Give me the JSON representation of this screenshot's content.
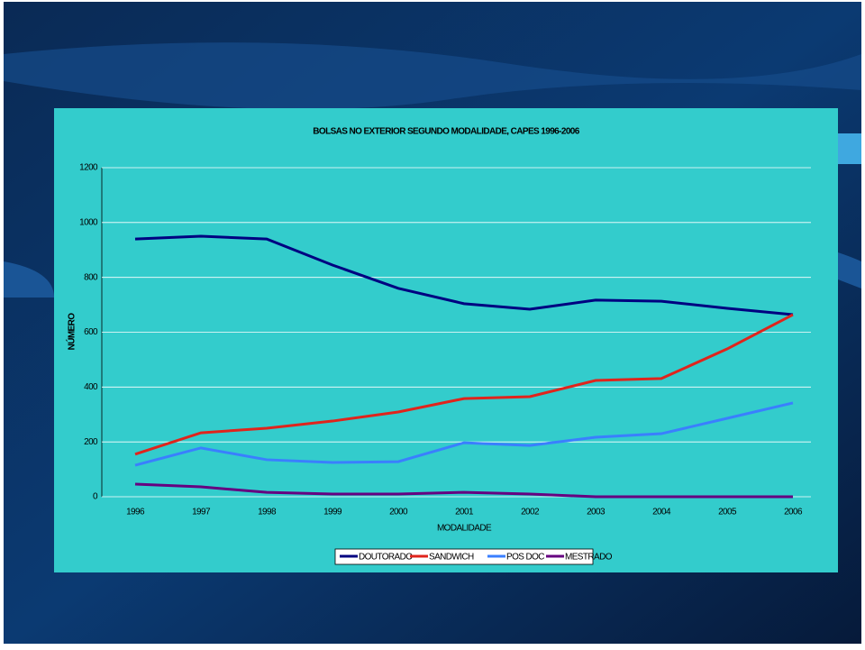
{
  "chart_data": {
    "type": "line",
    "title": "BOLSAS NO EXTERIOR SEGUNDO MODALIDADE, CAPES 1996-2006",
    "x_label": "MODALIDADE",
    "y_label": "NÚMERO",
    "categories": [
      "1996",
      "1997",
      "1998",
      "1999",
      "2000",
      "2001",
      "2002",
      "2003",
      "2004",
      "2005",
      "2006"
    ],
    "series": [
      {
        "name": "DOUTORADO",
        "color": "#000080",
        "values": [
          940,
          950,
          940,
          845,
          760,
          704,
          684,
          717,
          713,
          687,
          664
        ]
      },
      {
        "name": "SANDWICH",
        "color": "#e0241c",
        "values": [
          155,
          233,
          250,
          276,
          309,
          358,
          365,
          424,
          431,
          539,
          664
        ]
      },
      {
        "name": "POS DOC",
        "color": "#3a7fff",
        "values": [
          115,
          178,
          135,
          125,
          128,
          197,
          187,
          217,
          230,
          286,
          342
        ]
      },
      {
        "name": "MESTRADO",
        "color": "#660080",
        "values": [
          46,
          36,
          16,
          10,
          10,
          16,
          10,
          0,
          0,
          0,
          0
        ]
      }
    ],
    "ylim": [
      0,
      1200
    ],
    "yticks": [
      0,
      200,
      400,
      600,
      800,
      1000,
      1200
    ],
    "grid": true
  }
}
